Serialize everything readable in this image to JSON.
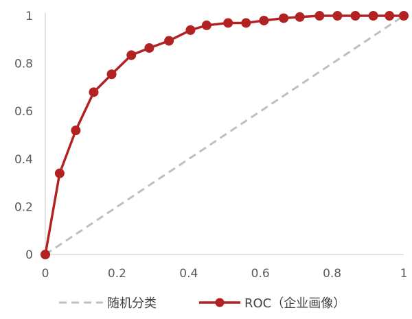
{
  "colors": {
    "roc": "#b22222",
    "random": "#bfbfbf",
    "axis": "#d9d9d9",
    "text": "#595959"
  },
  "chart_data": {
    "type": "line",
    "title": "",
    "xlabel": "",
    "ylabel": "",
    "xlim": [
      0,
      1
    ],
    "ylim": [
      0,
      1
    ],
    "grid": false,
    "legend": "bottom",
    "x_ticks": [
      "0",
      "0.2",
      "0.4",
      "0.6",
      "0.8",
      "1"
    ],
    "y_ticks": [
      "0",
      "0.2",
      "0.4",
      "0.6",
      "0.8",
      "1"
    ],
    "series": [
      {
        "name": "随机分类",
        "style": "dashed",
        "color": "#bfbfbf",
        "points": [
          [
            0,
            0
          ],
          [
            1,
            1
          ]
        ]
      },
      {
        "name": "ROC（企业画像）",
        "style": "solid-markers",
        "color": "#b22222",
        "points": [
          [
            0,
            0
          ],
          [
            0.04,
            0.34
          ],
          [
            0.085,
            0.52
          ],
          [
            0.135,
            0.68
          ],
          [
            0.185,
            0.755
          ],
          [
            0.24,
            0.835
          ],
          [
            0.29,
            0.865
          ],
          [
            0.345,
            0.895
          ],
          [
            0.405,
            0.94
          ],
          [
            0.45,
            0.96
          ],
          [
            0.51,
            0.97
          ],
          [
            0.56,
            0.97
          ],
          [
            0.61,
            0.98
          ],
          [
            0.665,
            0.99
          ],
          [
            0.71,
            0.995
          ],
          [
            0.765,
            1.0
          ],
          [
            0.815,
            1.0
          ],
          [
            0.865,
            1.0
          ],
          [
            0.915,
            1.0
          ],
          [
            0.96,
            1.0
          ],
          [
            1.0,
            1.0
          ]
        ]
      }
    ]
  }
}
